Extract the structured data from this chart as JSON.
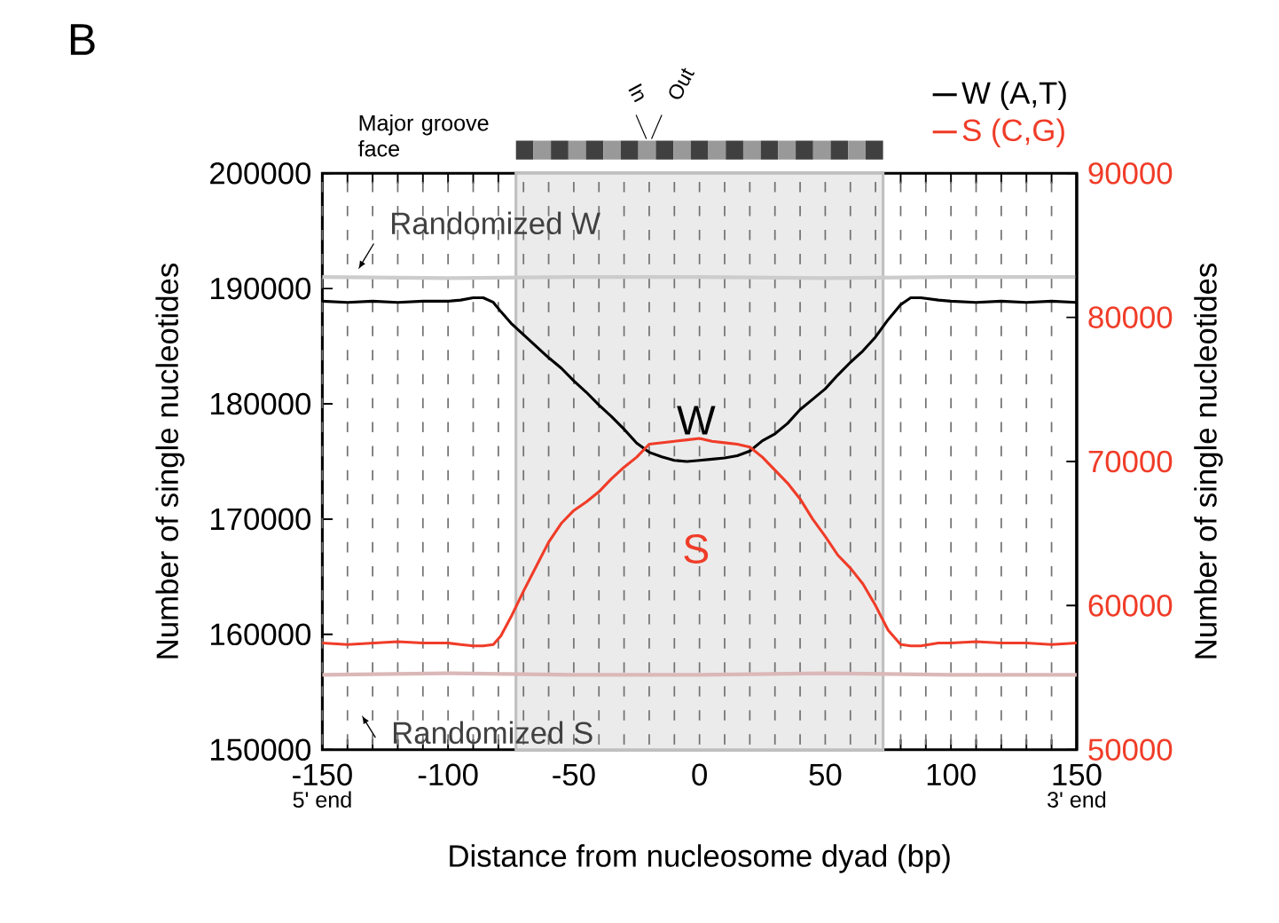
{
  "chart_data": {
    "type": "line",
    "xlabel": "Distance from nucleosome dyad (bp)",
    "ylabel": "Number of single nucleotides",
    "y2label": "Number of single nucleotides",
    "xlim": [
      -150,
      150
    ],
    "xticks": [
      -150,
      {
        "value": -140,
        "label": null
      },
      {
        "value": -130,
        "label": null
      },
      {
        "value": -120,
        "label": null
      },
      {
        "value": -110,
        "label": null
      },
      -100,
      {
        "value": -90,
        "label": null
      },
      {
        "value": -80,
        "label": null
      },
      {
        "value": -70,
        "label": null
      },
      {
        "value": -60,
        "label": null
      },
      -50,
      {
        "value": -40,
        "label": null
      },
      {
        "value": -30,
        "label": null
      },
      {
        "value": -20,
        "label": null
      },
      {
        "value": -10,
        "label": null
      },
      0,
      {
        "value": 10,
        "label": null
      },
      {
        "value": 20,
        "label": null
      },
      {
        "value": 30,
        "label": null
      },
      {
        "value": 40,
        "label": null
      },
      50,
      {
        "value": 60,
        "label": null
      },
      {
        "value": 70,
        "label": null
      },
      {
        "value": 80,
        "label": null
      },
      {
        "value": 90,
        "label": null
      },
      100,
      {
        "value": 110,
        "label": null
      },
      {
        "value": 120,
        "label": null
      },
      {
        "value": 130,
        "label": null
      },
      {
        "value": 140,
        "label": null
      },
      150
    ],
    "ylim": [
      150000,
      200000
    ],
    "yticks": [
      150000,
      160000,
      170000,
      180000,
      190000,
      200000
    ],
    "y2lim": [
      50000,
      90000
    ],
    "y2ticks": [
      50000,
      60000,
      70000,
      80000,
      90000
    ],
    "grid": "x",
    "legend": "top right",
    "bands": [
      {
        "axis": "x",
        "from": -73,
        "to": 73,
        "color": "#ebebeb"
      }
    ],
    "annotations": [
      "B",
      "Major groove face",
      "In",
      "Out",
      "Randomized W",
      "Randomized S",
      "5' end",
      "3' end",
      "W",
      "S"
    ],
    "series": [
      {
        "name": "W (A,T)",
        "color": "#000000",
        "x": [
          -150,
          -140,
          -130,
          -120,
          -110,
          -100,
          -95,
          -90,
          -86,
          -82,
          -79,
          -75,
          -70,
          -65,
          -60,
          -55,
          -50,
          -45,
          -40,
          -35,
          -30,
          -25,
          -20,
          -15,
          -10,
          -5,
          0,
          5,
          10,
          15,
          20,
          25,
          30,
          35,
          40,
          45,
          50,
          55,
          60,
          65,
          70,
          75,
          80,
          84,
          88,
          95,
          100,
          110,
          120,
          130,
          140,
          150
        ],
        "values": [
          188900,
          188800,
          188900,
          188800,
          188900,
          188900,
          189000,
          189200,
          189200,
          188800,
          188000,
          187000,
          186000,
          185000,
          184000,
          183100,
          182000,
          181000,
          179900,
          178900,
          177800,
          176600,
          175800,
          175400,
          175100,
          175000,
          175100,
          175200,
          175300,
          175500,
          175900,
          176800,
          177400,
          178300,
          179500,
          180400,
          181300,
          182500,
          183600,
          184600,
          185800,
          187300,
          188600,
          189200,
          189200,
          189000,
          188900,
          188800,
          188900,
          188800,
          188900,
          188800
        ]
      },
      {
        "name": "S (C,G)",
        "color": "#f03c28",
        "axis": "y2",
        "x": [
          -150,
          -140,
          -130,
          -120,
          -110,
          -100,
          -95,
          -90,
          -86,
          -82,
          -79,
          -75,
          -70,
          -65,
          -60,
          -55,
          -50,
          -45,
          -40,
          -35,
          -30,
          -25,
          -20,
          -15,
          -10,
          -5,
          0,
          5,
          10,
          15,
          20,
          25,
          30,
          35,
          40,
          45,
          50,
          55,
          60,
          65,
          70,
          75,
          80,
          84,
          88,
          95,
          100,
          110,
          120,
          130,
          140,
          150
        ],
        "values": [
          57400,
          57300,
          57400,
          57500,
          57400,
          57400,
          57300,
          57200,
          57200,
          57300,
          57900,
          59200,
          61000,
          62700,
          64400,
          65700,
          66600,
          67200,
          67900,
          68800,
          69600,
          70300,
          71200,
          71300,
          71400,
          71500,
          71600,
          71400,
          71300,
          71200,
          71000,
          70300,
          69400,
          68500,
          67400,
          66000,
          64800,
          63500,
          62600,
          61500,
          60000,
          58300,
          57300,
          57200,
          57200,
          57400,
          57400,
          57500,
          57400,
          57400,
          57300,
          57400
        ]
      },
      {
        "color": "#cccccc",
        "x": [
          -150,
          -100,
          -50,
          0,
          50,
          100,
          150
        ],
        "values": [
          191000,
          190900,
          191000,
          191000,
          190900,
          191000,
          191000
        ]
      },
      {
        "color": "#dbb8b8",
        "axis": "y2",
        "x": [
          -150,
          -100,
          -50,
          0,
          50,
          100,
          150
        ],
        "values": [
          55200,
          55300,
          55200,
          55200,
          55300,
          55200,
          55200
        ]
      }
    ]
  }
}
